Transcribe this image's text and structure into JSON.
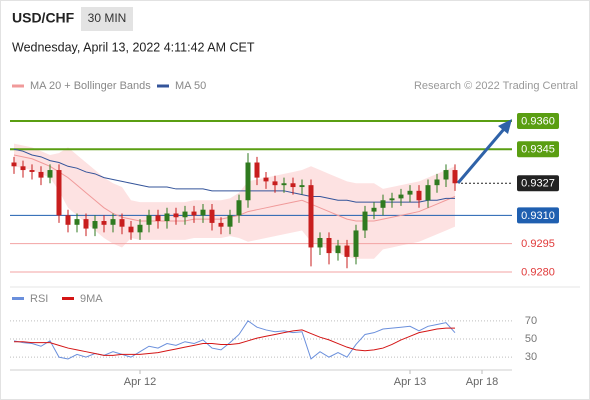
{
  "chart_data": [
    {
      "type": "candlestick",
      "title": "USD/CHF",
      "timeframe": "30 MIN",
      "subtitle": "Wednesday, April 13, 2022 4:11:42 AM CET",
      "source": "Research © 2022 Trading Central",
      "ylim": [
        0.9274,
        0.9369
      ],
      "up_color": "#2f7a1f",
      "down_color": "#c81e1e",
      "categories": [
        null,
        null,
        null,
        null,
        null,
        null,
        null,
        null,
        null,
        null,
        null,
        null,
        null,
        null,
        "Apr 12",
        null,
        null,
        null,
        null,
        null,
        null,
        null,
        null,
        null,
        null,
        null,
        null,
        null,
        null,
        null,
        null,
        null,
        null,
        null,
        null,
        null,
        null,
        null,
        null,
        null,
        null,
        null,
        null,
        null,
        "Apr 13",
        null,
        null,
        null,
        null,
        null,
        null,
        null,
        "Apr 18",
        null,
        null,
        null
      ],
      "open": [
        0.9338,
        0.9336,
        0.9334,
        0.9333,
        0.933,
        0.9334,
        0.931,
        0.9305,
        0.9308,
        0.9303,
        0.9307,
        0.9305,
        0.9308,
        0.9304,
        0.9301,
        0.9305,
        0.931,
        0.9307,
        0.9311,
        0.9309,
        0.9312,
        0.931,
        0.9313,
        0.9306,
        0.9304,
        0.931,
        0.9318,
        0.9338,
        0.933,
        0.9328,
        0.9326,
        0.9327,
        0.9325,
        0.9326,
        0.9293,
        0.9298,
        0.929,
        0.9294,
        0.9288,
        0.9302,
        0.9312,
        0.9314,
        0.9318,
        0.9319,
        0.9321,
        0.9323,
        0.9318,
        0.9326,
        0.9329,
        0.9334,
        null,
        null,
        null,
        null,
        null,
        null
      ],
      "high": [
        0.9341,
        0.9339,
        0.9337,
        0.9336,
        0.9337,
        0.9337,
        0.9313,
        0.9311,
        0.9311,
        0.931,
        0.931,
        0.9311,
        0.9311,
        0.9307,
        0.9308,
        0.9313,
        0.9313,
        0.9314,
        0.9314,
        0.9315,
        0.9315,
        0.9316,
        0.9316,
        0.9309,
        0.9313,
        0.9321,
        0.9343,
        0.9341,
        0.9333,
        0.9331,
        0.933,
        0.933,
        0.9329,
        0.9329,
        0.9301,
        0.9301,
        0.9297,
        0.9297,
        0.9305,
        0.9315,
        0.9317,
        0.9321,
        0.9322,
        0.9324,
        0.9326,
        0.9326,
        0.9329,
        0.9332,
        0.9337,
        0.9337,
        null,
        null,
        null,
        null,
        null,
        null
      ],
      "low": [
        0.9332,
        0.933,
        0.9329,
        0.9326,
        0.9327,
        0.9306,
        0.9301,
        0.9301,
        0.9299,
        0.9299,
        0.9301,
        0.9301,
        0.93,
        0.9297,
        0.9297,
        0.9301,
        0.9303,
        0.9303,
        0.9305,
        0.9305,
        0.9306,
        0.9306,
        0.9302,
        0.93,
        0.93,
        0.9306,
        0.9314,
        0.9326,
        0.9324,
        0.9322,
        0.9322,
        0.9321,
        0.9321,
        0.9283,
        0.9289,
        0.9284,
        0.9286,
        0.9282,
        0.9284,
        0.9298,
        0.9308,
        0.931,
        0.9314,
        0.9315,
        0.9317,
        0.9314,
        0.9314,
        0.9322,
        0.9325,
        0.9323,
        null,
        null,
        null,
        null,
        null,
        null
      ],
      "close": [
        0.9336,
        0.9334,
        0.9333,
        0.933,
        0.9334,
        0.931,
        0.9305,
        0.9308,
        0.9303,
        0.9307,
        0.9305,
        0.9308,
        0.9304,
        0.9301,
        0.9305,
        0.931,
        0.9307,
        0.9311,
        0.9309,
        0.9312,
        0.931,
        0.9313,
        0.9306,
        0.9304,
        0.931,
        0.9318,
        0.9338,
        0.933,
        0.9328,
        0.9326,
        0.9327,
        0.9325,
        0.9326,
        0.9293,
        0.9298,
        0.929,
        0.9294,
        0.9288,
        0.9302,
        0.9312,
        0.9314,
        0.9318,
        0.9319,
        0.9321,
        0.9323,
        0.9318,
        0.9326,
        0.9329,
        0.9334,
        0.9327,
        null,
        null,
        null,
        null,
        null,
        null
      ],
      "series": [
        {
          "name": "MA 20 + Bollinger Bands",
          "color": "#f09a9a",
          "band_color": "#fde2e2",
          "values": [
            0.9342,
            0.9341,
            0.934,
            0.9338,
            0.9336,
            0.9333,
            0.933,
            0.9326,
            0.9322,
            0.9318,
            0.9314,
            0.9311,
            0.9309,
            0.9308,
            0.9307,
            0.9307,
            0.9307,
            0.9307,
            0.9307,
            0.9307,
            0.9308,
            0.9308,
            0.9308,
            0.9308,
            0.9309,
            0.931,
            0.9312,
            0.9313,
            0.9314,
            0.9315,
            0.9316,
            0.9317,
            0.9318,
            0.9316,
            0.9314,
            0.9312,
            0.931,
            0.9308,
            0.9307,
            0.9307,
            0.9307,
            0.9308,
            0.9309,
            0.931,
            0.9311,
            0.9312,
            0.9314,
            0.9316,
            0.9318,
            0.932,
            null,
            null,
            null,
            null,
            null,
            null
          ],
          "upper": [
            0.9348,
            0.9347,
            0.9346,
            0.9344,
            0.9342,
            0.9343,
            0.9346,
            0.9342,
            0.9338,
            0.9334,
            0.933,
            0.9327,
            0.9325,
            0.9318,
            0.9317,
            0.9317,
            0.9317,
            0.9317,
            0.9317,
            0.9317,
            0.9318,
            0.9318,
            0.9318,
            0.9318,
            0.9319,
            0.9322,
            0.9328,
            0.9329,
            0.933,
            0.9331,
            0.9332,
            0.9333,
            0.9334,
            0.9336,
            0.9334,
            0.9332,
            0.933,
            0.9328,
            0.9327,
            0.9327,
            0.9327,
            0.9324,
            0.9325,
            0.9326,
            0.9327,
            0.9328,
            0.933,
            0.9332,
            0.9334,
            0.9336,
            null,
            null,
            null,
            null,
            null,
            null
          ],
          "lower": [
            0.9336,
            0.9335,
            0.9334,
            0.9332,
            0.933,
            0.9323,
            0.9314,
            0.931,
            0.9306,
            0.9302,
            0.9298,
            0.9295,
            0.9293,
            0.9298,
            0.9297,
            0.9297,
            0.9297,
            0.9297,
            0.9297,
            0.9297,
            0.9298,
            0.9298,
            0.9298,
            0.9298,
            0.9299,
            0.9298,
            0.9296,
            0.9297,
            0.9298,
            0.9299,
            0.93,
            0.9301,
            0.9302,
            0.9296,
            0.9294,
            0.9292,
            0.929,
            0.9288,
            0.9287,
            0.9287,
            0.9287,
            0.9292,
            0.9293,
            0.9294,
            0.9295,
            0.9296,
            0.9298,
            0.93,
            0.9302,
            0.9304,
            null,
            null,
            null,
            null,
            null,
            null
          ]
        },
        {
          "name": "MA 50",
          "color": "#34549a",
          "values": [
            0.9345,
            0.9344,
            0.9342,
            0.9341,
            0.9339,
            0.9338,
            0.9336,
            0.9335,
            0.9333,
            0.9332,
            0.933,
            0.9329,
            0.9328,
            0.9327,
            0.9326,
            0.9325,
            0.9325,
            0.9325,
            0.9324,
            0.9324,
            0.9324,
            0.9324,
            0.9323,
            0.9323,
            0.9323,
            0.9323,
            0.9323,
            0.9323,
            0.9323,
            0.9323,
            0.9323,
            0.9322,
            0.9321,
            0.932,
            0.932,
            0.9319,
            0.9318,
            0.9318,
            0.9317,
            0.9317,
            0.9317,
            0.9317,
            0.9317,
            0.9317,
            0.9317,
            0.9317,
            0.9318,
            0.9318,
            0.9319,
            0.9319,
            null,
            null,
            null,
            null,
            null,
            null
          ]
        }
      ],
      "levels": [
        {
          "value": 0.936,
          "label": "0.9360",
          "color": "#5a9e12",
          "style": "box",
          "line": "solid"
        },
        {
          "value": 0.9345,
          "label": "0.9345",
          "color": "#5a9e12",
          "style": "box",
          "line": "solid"
        },
        {
          "value": 0.9327,
          "label": "0.9327",
          "color": "#222222",
          "style": "box",
          "line": "dotted"
        },
        {
          "value": 0.931,
          "label": "0.9310",
          "color": "#1f5fb0",
          "style": "box",
          "line": "solid"
        },
        {
          "value": 0.9295,
          "label": "0.9295",
          "color": "#e03a3a",
          "style": "text",
          "line": "solid"
        },
        {
          "value": 0.928,
          "label": "0.9280",
          "color": "#e03a3a",
          "style": "text",
          "line": "solid"
        }
      ]
    },
    {
      "type": "line",
      "ylim": [
        18,
        82
      ],
      "yticks": [
        30,
        50,
        70
      ],
      "series": [
        {
          "name": "RSI",
          "color": "#6a8fdc",
          "values": [
            48,
            46,
            45,
            42,
            48,
            30,
            28,
            33,
            30,
            34,
            32,
            36,
            33,
            30,
            36,
            42,
            40,
            45,
            43,
            47,
            45,
            49,
            40,
            38,
            46,
            55,
            70,
            63,
            60,
            58,
            59,
            57,
            58,
            28,
            36,
            30,
            35,
            30,
            44,
            55,
            57,
            61,
            62,
            63,
            64,
            59,
            64,
            66,
            68,
            57,
            null,
            null,
            null,
            null,
            null,
            null
          ]
        },
        {
          "name": "9MA",
          "color": "#d41515",
          "values": [
            47,
            47,
            46,
            46,
            46,
            43,
            40,
            38,
            36,
            34,
            32,
            32,
            33,
            33,
            33,
            34,
            35,
            37,
            39,
            41,
            43,
            45,
            45,
            44,
            44,
            45,
            48,
            51,
            53,
            55,
            57,
            59,
            60,
            56,
            52,
            49,
            45,
            41,
            38,
            37,
            38,
            40,
            44,
            49,
            53,
            57,
            59,
            61,
            62,
            62,
            null,
            null,
            null,
            null,
            null,
            null
          ]
        }
      ]
    }
  ]
}
